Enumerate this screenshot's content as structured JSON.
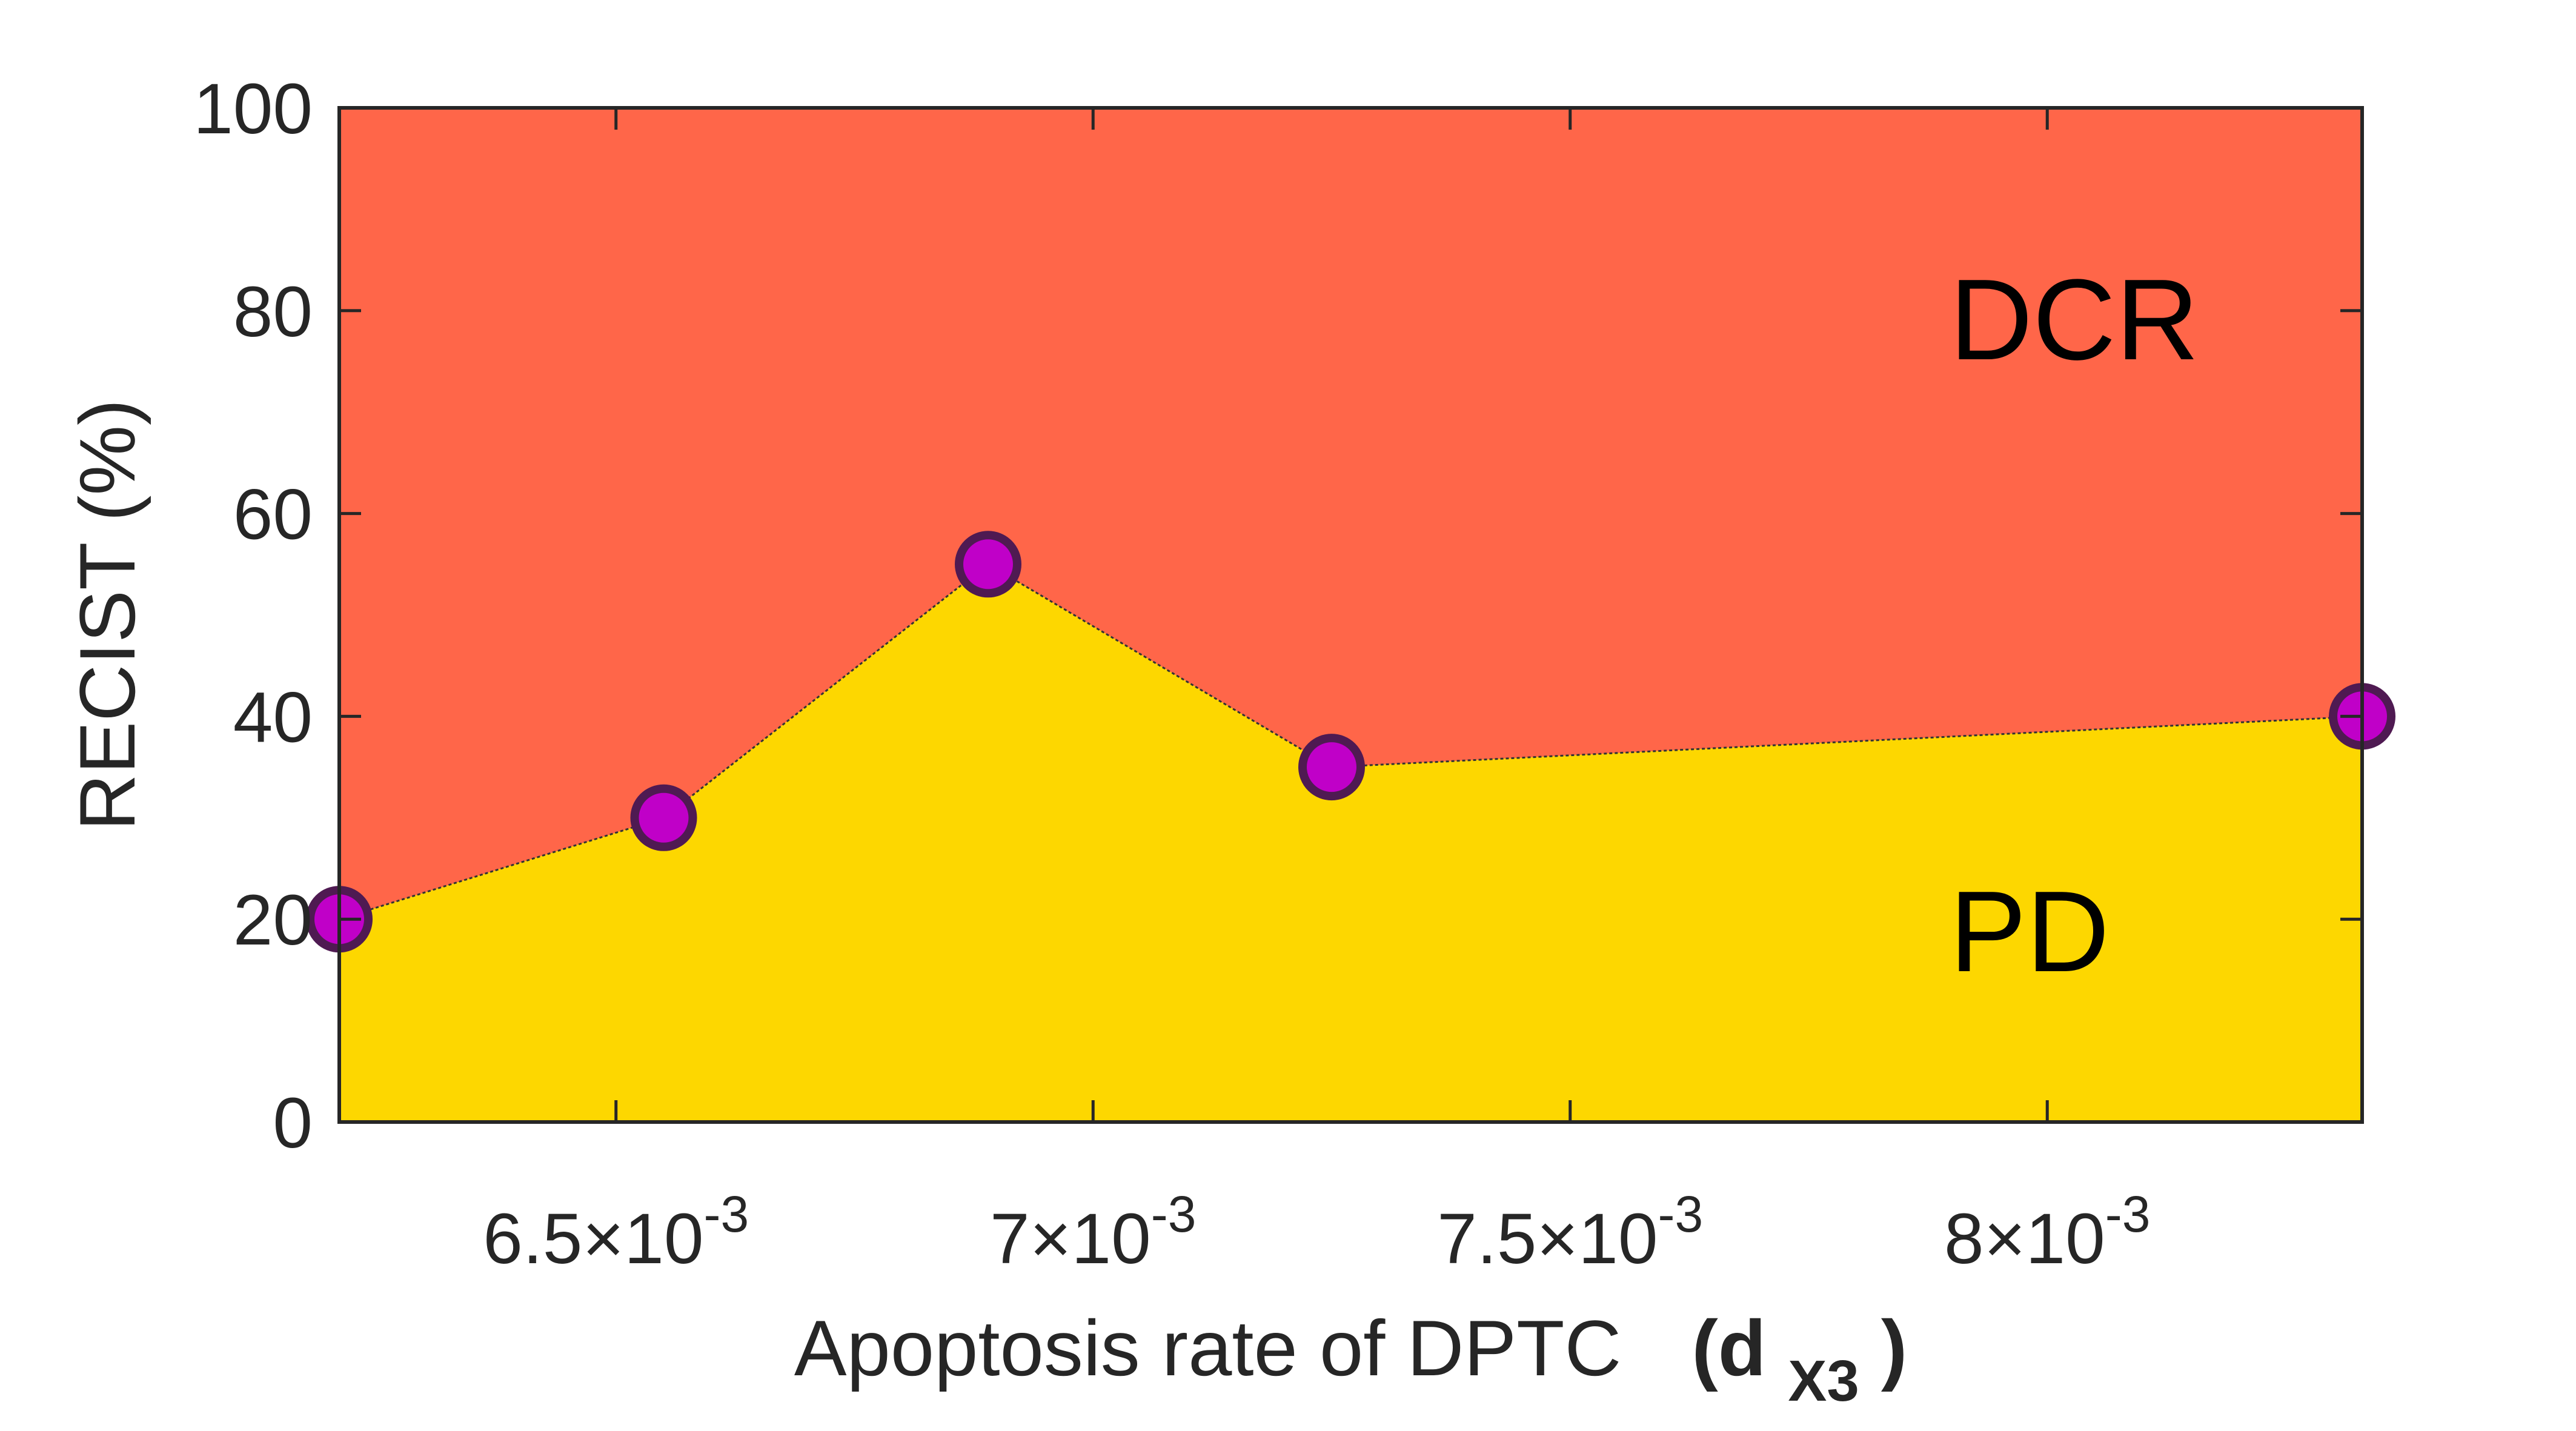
{
  "chart_data": {
    "type": "area",
    "title": "",
    "xlabel": "Apoptosis rate of DPTC",
    "xlabel_symbol": "(d",
    "xlabel_subscript": "X3",
    "xlabel_close": ")",
    "ylabel": "RECIST (%)",
    "xlim": [
      0.00621,
      0.00833
    ],
    "ylim": [
      0,
      100
    ],
    "x_ticks": [
      {
        "value": 0.0065,
        "mantissa": "6.5",
        "times": "×10",
        "exp": "-3"
      },
      {
        "value": 0.007,
        "mantissa": "7",
        "times": "×10",
        "exp": "-3"
      },
      {
        "value": 0.0075,
        "mantissa": "7.5",
        "times": "×10",
        "exp": "-3"
      },
      {
        "value": 0.008,
        "mantissa": "8",
        "times": "×10",
        "exp": "-3"
      }
    ],
    "y_ticks": [
      0,
      20,
      40,
      60,
      80,
      100
    ],
    "x": [
      0.00621,
      0.00655,
      0.00689,
      0.00725,
      0.00833
    ],
    "series": [
      {
        "name": "PD",
        "values": [
          20,
          30,
          55,
          35,
          40
        ]
      },
      {
        "name": "DCR",
        "values": [
          80,
          70,
          45,
          65,
          60
        ]
      }
    ],
    "grid": false,
    "legend": "none",
    "colors": {
      "pd_fill": "#FDD700",
      "dcr_fill": "#FF6649",
      "marker_fill": "#C000C8",
      "marker_edge": "#4F1A52",
      "axis": "#262626"
    },
    "region_labels": {
      "dcr": "DCR",
      "pd": "PD"
    }
  }
}
